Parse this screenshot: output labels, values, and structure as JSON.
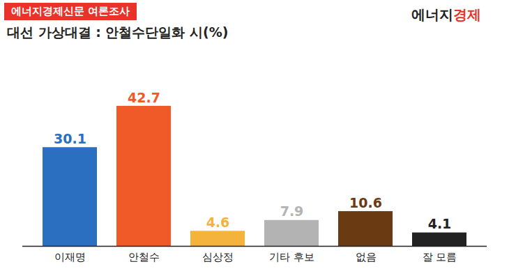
{
  "chart_data": {
    "type": "bar",
    "badge": "에너지경제신문 여론조사",
    "logo": "에너지경제",
    "title": "대선 가상대결 : 안철수단일화 시(%)",
    "categories": [
      "이재명",
      "안철수",
      "심상정",
      "기타 후보",
      "없음",
      "잘 모름"
    ],
    "values": [
      30.1,
      42.7,
      4.6,
      7.9,
      10.6,
      4.1
    ],
    "colors": [
      "#2b6fc1",
      "#f05a28",
      "#f3b33d",
      "#b3b3b3",
      "#6a3b12",
      "#222222"
    ],
    "ylim": [
      0,
      55
    ],
    "data_labels": true,
    "tick_labels": "x",
    "grid": false
  }
}
